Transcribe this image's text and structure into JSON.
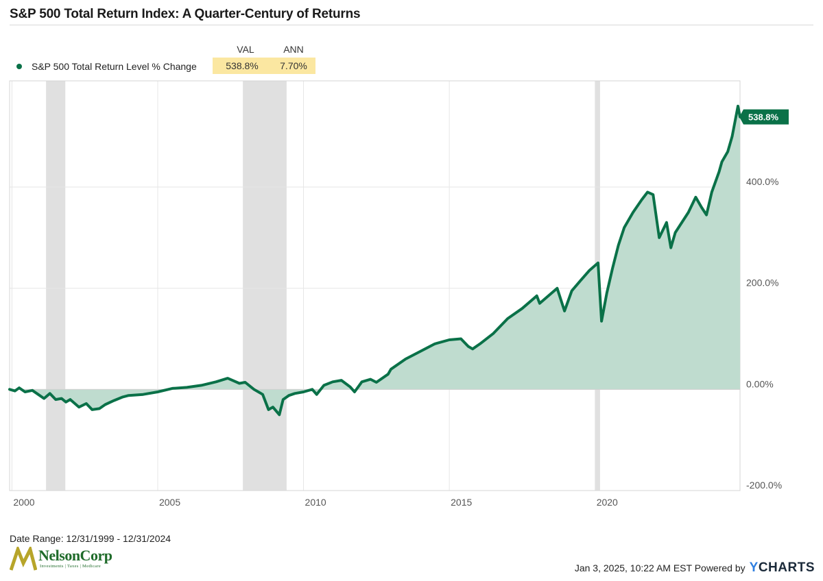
{
  "title": "S&P 500 Total Return Index: A Quarter-Century of Returns",
  "legend": {
    "col_val": "VAL",
    "col_ann": "ANN",
    "series_name": "S&P 500 Total Return Level % Change",
    "val": "538.8%",
    "ann": "7.70%"
  },
  "end_label": "538.8%",
  "footer": {
    "date_range": "Date Range: 12/31/1999 - 12/31/2024",
    "timestamp": "Jan 3, 2025, 10:22 AM EST Powered by",
    "ycharts_y": "Y",
    "ycharts_rest": "CHARTS"
  },
  "logo": {
    "name": "NelsonCorp",
    "tagline": "Investments | Taxes | Medicare"
  },
  "colors": {
    "line": "#0a7148",
    "fill": "#bfdccf",
    "recession": "#e0e0e0",
    "grid": "#e6e6e6",
    "highlight": "#fbe7a1"
  },
  "chart_data": {
    "type": "area",
    "ylim": [
      -200,
      610
    ],
    "xlim": [
      1999.92,
      2024.97
    ],
    "y_ticks": [
      {
        "value": 400,
        "label": "400.0%"
      },
      {
        "value": 200,
        "label": "200.0%"
      },
      {
        "value": 0,
        "label": "0.00%"
      },
      {
        "value": -200,
        "label": "-200.0%"
      }
    ],
    "x_ticks": [
      {
        "value": 2000,
        "label": "2000"
      },
      {
        "value": 2005,
        "label": "2005"
      },
      {
        "value": 2010,
        "label": "2010"
      },
      {
        "value": 2015,
        "label": "2015"
      },
      {
        "value": 2020,
        "label": "2020"
      }
    ],
    "recessions": [
      [
        2001.17,
        2001.83
      ],
      [
        2007.92,
        2009.42
      ],
      [
        2020.0,
        2020.17
      ]
    ],
    "series": [
      {
        "name": "S&P 500 Total Return Level % Change",
        "x": [
          1999.92,
          2000.1,
          2000.25,
          2000.45,
          2000.7,
          2000.9,
          2001.1,
          2001.3,
          2001.5,
          2001.7,
          2001.85,
          2002.0,
          2002.3,
          2002.55,
          2002.75,
          2003.0,
          2003.2,
          2003.5,
          2003.8,
          2004.0,
          2004.5,
          2005.0,
          2005.5,
          2006.0,
          2006.5,
          2007.0,
          2007.4,
          2007.8,
          2008.0,
          2008.3,
          2008.6,
          2008.8,
          2008.95,
          2009.17,
          2009.3,
          2009.5,
          2009.7,
          2010.0,
          2010.3,
          2010.45,
          2010.7,
          2011.0,
          2011.3,
          2011.6,
          2011.75,
          2012.0,
          2012.3,
          2012.5,
          2012.9,
          2013.0,
          2013.5,
          2014.0,
          2014.5,
          2015.0,
          2015.4,
          2015.65,
          2015.8,
          2016.05,
          2016.5,
          2017.0,
          2017.5,
          2018.0,
          2018.1,
          2018.7,
          2018.95,
          2019.2,
          2019.5,
          2019.8,
          2020.1,
          2020.22,
          2020.4,
          2020.6,
          2020.8,
          2021.0,
          2021.3,
          2021.6,
          2021.8,
          2021.99,
          2022.2,
          2022.45,
          2022.6,
          2022.75,
          2022.92,
          2023.2,
          2023.45,
          2023.65,
          2023.82,
          2024.0,
          2024.25,
          2024.35,
          2024.55,
          2024.7,
          2024.9,
          2024.97
        ],
        "values": [
          0,
          -3,
          3,
          -5,
          -2,
          -10,
          -18,
          -8,
          -20,
          -18,
          -25,
          -20,
          -35,
          -28,
          -40,
          -38,
          -30,
          -22,
          -15,
          -12,
          -10,
          -5,
          2,
          4,
          8,
          15,
          22,
          12,
          14,
          0,
          -10,
          -40,
          -35,
          -50,
          -20,
          -12,
          -8,
          -5,
          0,
          -10,
          8,
          15,
          18,
          5,
          -5,
          15,
          20,
          14,
          30,
          40,
          60,
          75,
          90,
          98,
          100,
          85,
          80,
          90,
          110,
          140,
          160,
          185,
          170,
          200,
          155,
          195,
          215,
          235,
          250,
          135,
          190,
          240,
          285,
          320,
          350,
          375,
          390,
          385,
          300,
          330,
          280,
          310,
          325,
          350,
          380,
          360,
          345,
          390,
          430,
          450,
          470,
          500,
          560,
          538.8
        ]
      }
    ]
  }
}
